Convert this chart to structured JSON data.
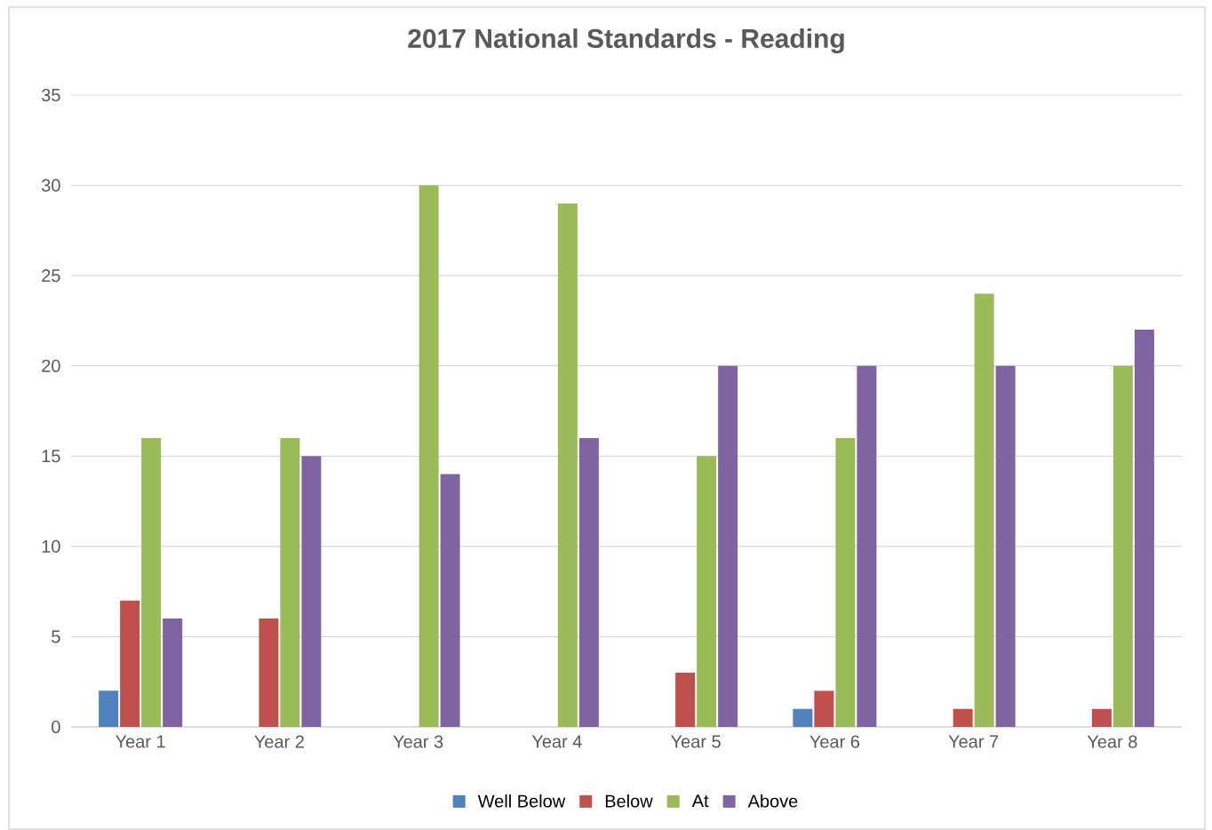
{
  "chart_data": {
    "type": "bar",
    "title": "2017 National Standards - Reading",
    "categories": [
      "Year 1",
      "Year 2",
      "Year 3",
      "Year 4",
      "Year 5",
      "Year 6",
      "Year 7",
      "Year 8"
    ],
    "series": [
      {
        "name": "Well Below",
        "color": "#4f81bd",
        "values": [
          2,
          0,
          0,
          0,
          0,
          1,
          0,
          0
        ]
      },
      {
        "name": "Below",
        "color": "#c0504d",
        "values": [
          7,
          6,
          0,
          0,
          3,
          2,
          1,
          1
        ]
      },
      {
        "name": "At",
        "color": "#9bbb59",
        "values": [
          16,
          16,
          30,
          29,
          15,
          16,
          24,
          20
        ]
      },
      {
        "name": "Above",
        "color": "#8064a2",
        "values": [
          6,
          15,
          14,
          16,
          20,
          20,
          20,
          22
        ]
      }
    ],
    "ylim": [
      0,
      35
    ],
    "yticks": [
      0,
      5,
      10,
      15,
      20,
      25,
      30,
      35
    ],
    "grid": "y",
    "legend": "bottom"
  }
}
